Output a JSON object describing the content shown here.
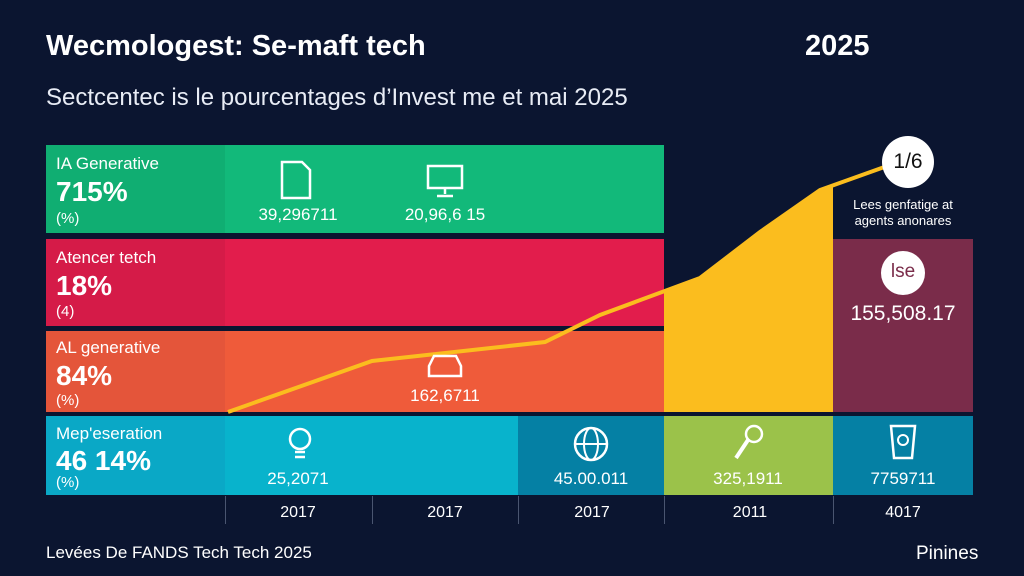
{
  "header": {
    "title": "Wecmologest: Se-maft tech",
    "year": "2025",
    "subtitle": "Sectcentec is le pourcentages d’Invest me et mai 2025"
  },
  "rows": [
    {
      "label": "IA Generative",
      "pct": "715%",
      "unit": "(%)",
      "color": "#12b97a",
      "values": [
        "39,296711",
        "20,96,6 15"
      ]
    },
    {
      "label": "Atencer tetch",
      "pct": "18%",
      "unit": "(4)",
      "color": "#e21d4c"
    },
    {
      "label": "AL generative",
      "pct": "84%",
      "unit": "(%)",
      "color": "#ef5b3a",
      "values": [
        "162,6711"
      ]
    },
    {
      "label": "Mep'eseration",
      "pct": "46 14%",
      "unit": "(%)",
      "color": "#08b3cc",
      "values": [
        "25,2071",
        "45.00.011",
        "325,1911",
        "7759711"
      ]
    }
  ],
  "callout": {
    "badge": "1/6",
    "text_line1": "Lees genfatige at",
    "text_line2": "agents anonares",
    "box_badge": "lse",
    "box_value": "155,508.17",
    "box_color": "#7a2c4a"
  },
  "accent_line_color": "#fbbd1e",
  "years": [
    "2017",
    "2017",
    "2017",
    "2011",
    "4017"
  ],
  "footer": {
    "left": "Levées De FANDS Tech Tech 2025",
    "right": "Pinines"
  }
}
